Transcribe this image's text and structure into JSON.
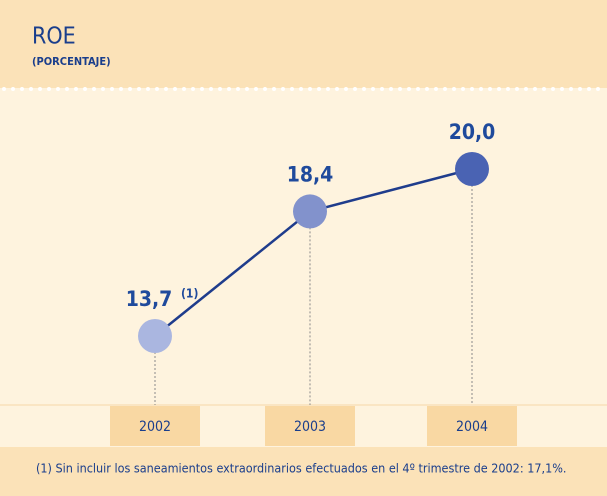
{
  "chart_data": {
    "type": "line",
    "title": "ROE",
    "subtitle": "(PORCENTAJE)",
    "categories": [
      "2002",
      "2003",
      "2004"
    ],
    "series": [
      {
        "values": [
          13.7,
          18.4,
          20.0
        ],
        "value_labels": [
          "13,7",
          "18,4",
          "20,0"
        ],
        "color": "#1f3c8c",
        "marker_colors": [
          "#aab6e0",
          "#8292cc",
          "#4a63b3"
        ]
      }
    ],
    "annotation": "(1)",
    "footnote": "(1)  Sin incluir los saneamientos extraordinarios efectuados en el 4º trimestre de 2002: 17,1%."
  }
}
